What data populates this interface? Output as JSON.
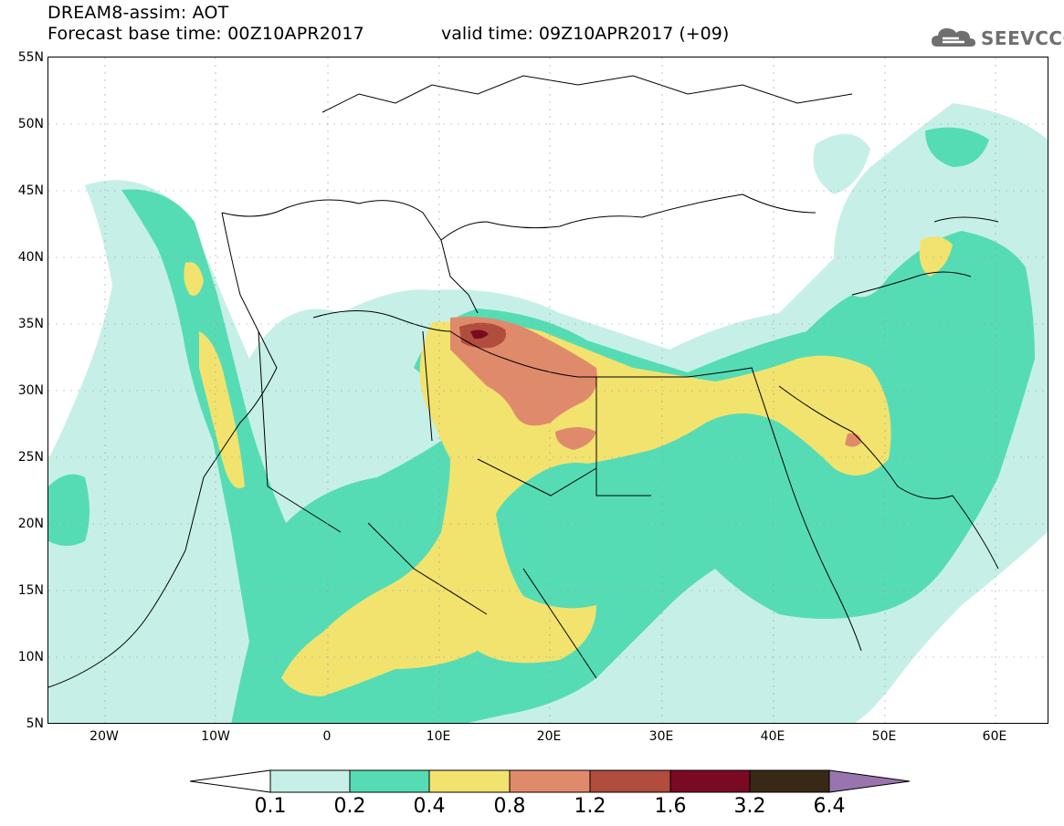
{
  "header": {
    "title_line1": "DREAM8-assim: AOT",
    "title_line2": "Forecast base time: 00Z10APR2017",
    "valid_time": "valid time: 09Z10APR2017 (+09)",
    "logo_text": "SEEVCCC",
    "logo_icon": "cloud-logo-icon"
  },
  "map": {
    "lat_labels": [
      "55N",
      "50N",
      "45N",
      "40N",
      "35N",
      "30N",
      "25N",
      "20N",
      "15N",
      "10N",
      "5N"
    ],
    "lon_labels": [
      "20W",
      "10W",
      "0",
      "10E",
      "20E",
      "30E",
      "40E",
      "50E",
      "60E"
    ],
    "colors": {
      "c0_1": "#c6f0e7",
      "c0_2": "#56dcb4",
      "c0_4": "#f2e36f",
      "c0_8": "#e08a6c",
      "c1_2": "#b14d3c",
      "c1_6": "#7a0a22",
      "c3_2": "#3a2816",
      "c6_4": "#9a74ae",
      "border": "#000000"
    }
  },
  "colorbar": {
    "labels": [
      "0.1",
      "0.2",
      "0.4",
      "0.8",
      "1.2",
      "1.6",
      "3.2",
      "6.4"
    ]
  }
}
